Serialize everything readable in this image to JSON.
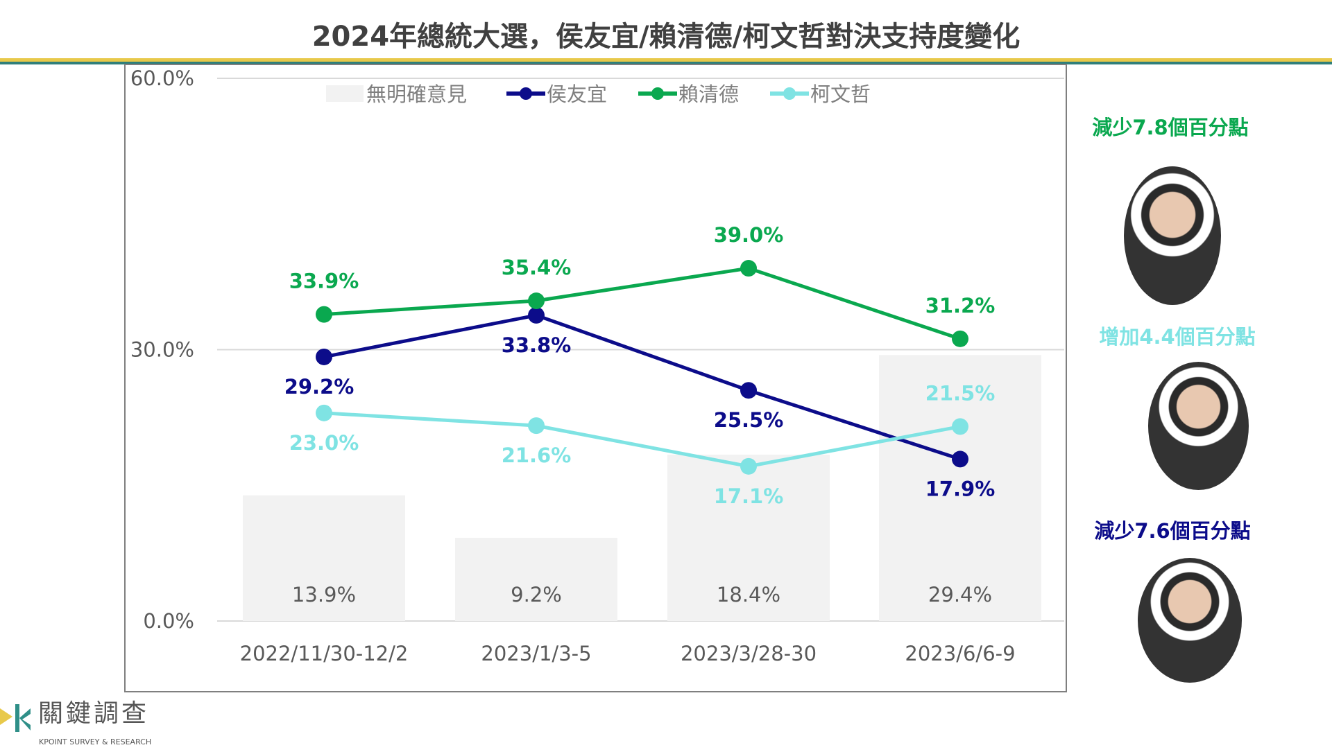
{
  "title": "2024年總統大選，侯友宜/賴清德/柯文哲對決支持度變化",
  "chart_data": {
    "type": "line+bar",
    "categories": [
      "2022/11/30-12/2",
      "2023/1/3-5",
      "2023/3/28-30",
      "2023/6/6-9"
    ],
    "ylim": [
      0,
      60
    ],
    "yticks": [
      "0.0%",
      "30.0%",
      "60.0%"
    ],
    "legend_position": "top",
    "series": [
      {
        "name": "無明確意見",
        "type": "bar",
        "color": "#f2f2f2",
        "values": [
          13.9,
          9.2,
          18.4,
          29.4
        ],
        "labels": [
          "13.9%",
          "9.2%",
          "18.4%",
          "29.4%"
        ]
      },
      {
        "name": "侯友宜",
        "type": "line",
        "color": "#0c0c8a",
        "values": [
          29.2,
          33.8,
          25.5,
          17.9
        ],
        "labels": [
          "29.2%",
          "33.8%",
          "25.5%",
          "17.9%"
        ]
      },
      {
        "name": "賴清德",
        "type": "line",
        "color": "#0aa84f",
        "values": [
          33.9,
          35.4,
          39.0,
          31.2
        ],
        "labels": [
          "33.9%",
          "35.4%",
          "39.0%",
          "31.2%"
        ]
      },
      {
        "name": "柯文哲",
        "type": "line",
        "color": "#7fe3e3",
        "values": [
          23.0,
          21.6,
          17.1,
          21.5
        ],
        "labels": [
          "23.0%",
          "21.6%",
          "17.1%",
          "21.5%"
        ]
      }
    ]
  },
  "notes": [
    {
      "text": "減少7.8個百分點",
      "color": "#0aa84f"
    },
    {
      "text": "增加4.4個百分點",
      "color": "#7fe3e3"
    },
    {
      "text": "減少7.6個百分點",
      "color": "#0c0c8a"
    }
  ],
  "logo": {
    "cn": "關鍵調查",
    "en": "KPOINT SURVEY & RESEARCH"
  }
}
